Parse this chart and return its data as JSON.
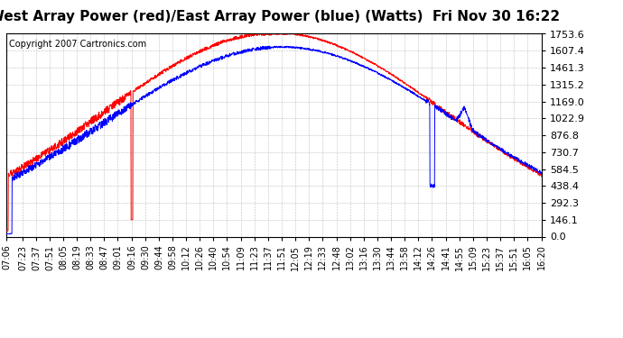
{
  "title": "West Array Power (red)/East Array Power (blue) (Watts)  Fri Nov 30 16:22",
  "copyright": "Copyright 2007 Cartronics.com",
  "background_color": "#ffffff",
  "plot_bg_color": "#ffffff",
  "grid_color": "#b0b0b0",
  "yticks": [
    0.0,
    146.1,
    292.3,
    438.4,
    584.5,
    730.7,
    876.8,
    1022.9,
    1169.0,
    1315.2,
    1461.3,
    1607.4,
    1753.6
  ],
  "ymax": 1753.6,
  "xtick_labels": [
    "07:06",
    "07:23",
    "07:37",
    "07:51",
    "08:05",
    "08:19",
    "08:33",
    "08:47",
    "09:01",
    "09:16",
    "09:30",
    "09:44",
    "09:58",
    "10:12",
    "10:26",
    "10:40",
    "10:54",
    "11:09",
    "11:23",
    "11:37",
    "11:51",
    "12:05",
    "12:19",
    "12:33",
    "12:48",
    "13:02",
    "13:16",
    "13:30",
    "13:44",
    "13:58",
    "14:12",
    "14:26",
    "14:41",
    "14:55",
    "15:09",
    "15:23",
    "15:37",
    "15:51",
    "16:05",
    "16:20"
  ],
  "red_color": "#ff0000",
  "blue_color": "#0000ff",
  "title_fontsize": 11,
  "copyright_fontsize": 7,
  "tick_fontsize": 7,
  "ytick_fontsize": 8
}
